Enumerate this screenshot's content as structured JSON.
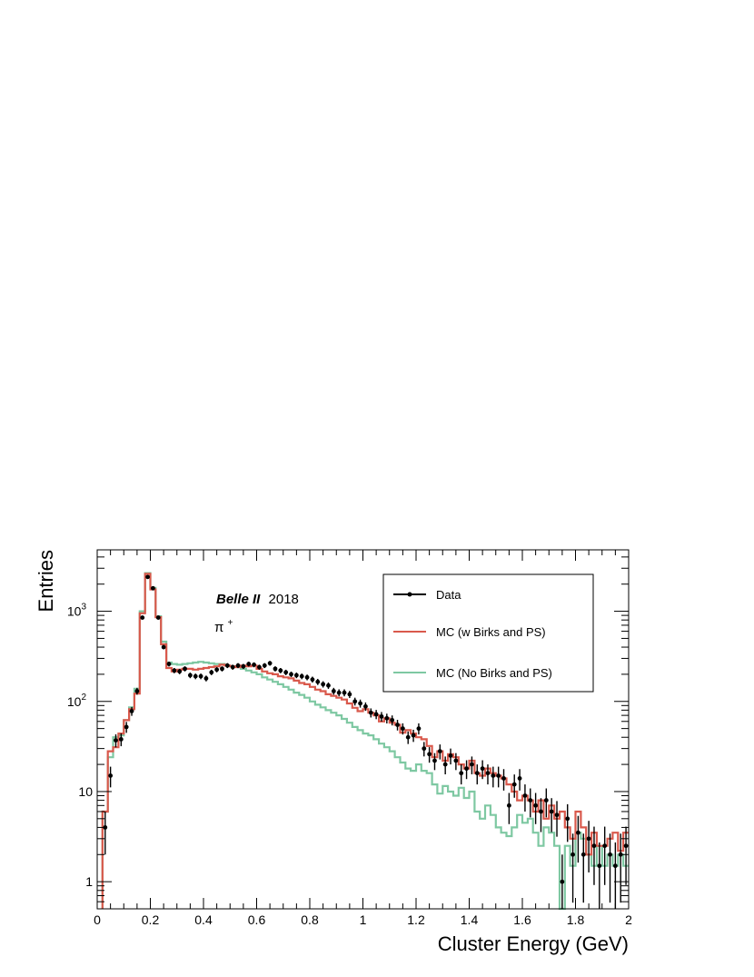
{
  "chart_data": {
    "type": "histogram",
    "title": "",
    "annotation": {
      "experiment": "Belle II",
      "year": "2018",
      "particle": "π",
      "charge": "+"
    },
    "xlabel": "Cluster Energy (GeV)",
    "ylabel": "Entries",
    "xlim": [
      0,
      2
    ],
    "ylim": [
      0.5,
      4800
    ],
    "y_scale": "log",
    "grid": false,
    "legend_position": "top-right",
    "x_ticks": [
      {
        "value": 0,
        "label": "0"
      },
      {
        "value": 0.2,
        "label": "0.2"
      },
      {
        "value": 0.4,
        "label": "0.4"
      },
      {
        "value": 0.6,
        "label": "0.6"
      },
      {
        "value": 0.8,
        "label": "0.8"
      },
      {
        "value": 1.0,
        "label": "1"
      },
      {
        "value": 1.2,
        "label": "1.2"
      },
      {
        "value": 1.4,
        "label": "1.4"
      },
      {
        "value": 1.6,
        "label": "1.6"
      },
      {
        "value": 1.8,
        "label": "1.8"
      },
      {
        "value": 2.0,
        "label": "2"
      }
    ],
    "y_ticks": [
      {
        "value": 1,
        "base": "1",
        "exp": ""
      },
      {
        "value": 10,
        "base": "10",
        "exp": ""
      },
      {
        "value": 100,
        "base": "10",
        "exp": "2"
      },
      {
        "value": 1000,
        "base": "10",
        "exp": "3"
      }
    ],
    "bin_edges": [
      0.02,
      2.0
    ],
    "bin_width": 0.02,
    "series": [
      {
        "name": "Data",
        "style": "points",
        "color": "#000000",
        "values": [
          4,
          15,
          37,
          38,
          52,
          78,
          130,
          850,
          2400,
          1800,
          850,
          400,
          260,
          220,
          215,
          230,
          195,
          190,
          190,
          180,
          210,
          225,
          230,
          250,
          240,
          250,
          245,
          260,
          255,
          240,
          250,
          265,
          230,
          220,
          210,
          200,
          195,
          190,
          185,
          175,
          165,
          155,
          150,
          130,
          125,
          125,
          120,
          100,
          95,
          88,
          75,
          72,
          68,
          65,
          62,
          55,
          50,
          40,
          42,
          50,
          30,
          26,
          22,
          28,
          20,
          25,
          22,
          16,
          18,
          20,
          16,
          18,
          16,
          15,
          15,
          14,
          7,
          12,
          14,
          9,
          8,
          7,
          6,
          8,
          6,
          5.5,
          1,
          5,
          2,
          3.5,
          2,
          3,
          2.5,
          1.5,
          2.5,
          2,
          1.5,
          2,
          2.5
        ]
      },
      {
        "name": "MC (w Birks and PS)",
        "style": "step",
        "color": "#d9594c",
        "values": [
          6,
          28,
          31,
          44,
          62,
          82,
          122,
          950,
          2600,
          1750,
          860,
          430,
          235,
          215,
          225,
          230,
          230,
          225,
          230,
          235,
          240,
          245,
          255,
          250,
          245,
          240,
          250,
          245,
          250,
          230,
          215,
          205,
          200,
          190,
          185,
          180,
          170,
          160,
          155,
          145,
          135,
          130,
          120,
          115,
          110,
          105,
          95,
          85,
          78,
          82,
          75,
          70,
          60,
          65,
          58,
          55,
          45,
          48,
          44,
          40,
          38,
          32,
          24,
          28,
          22,
          26,
          24,
          20,
          18,
          22,
          16,
          15,
          18,
          16,
          15,
          14,
          12,
          10,
          8,
          9,
          8,
          6,
          8,
          5,
          7,
          5,
          6,
          4,
          3,
          6,
          4,
          2,
          3.5,
          2.5,
          2.5,
          3,
          3.5,
          2.2,
          3.5
        ]
      },
      {
        "name": "MC (No Birks and PS)",
        "style": "step",
        "color": "#7ec8a2",
        "values": [
          6,
          24,
          40,
          42,
          62,
          86,
          138,
          1000,
          2650,
          1820,
          880,
          460,
          270,
          260,
          255,
          260,
          265,
          270,
          275,
          270,
          265,
          260,
          260,
          250,
          245,
          240,
          230,
          220,
          210,
          200,
          185,
          175,
          165,
          155,
          145,
          135,
          125,
          118,
          110,
          100,
          92,
          86,
          80,
          75,
          70,
          64,
          58,
          52,
          48,
          44,
          42,
          38,
          34,
          31,
          28,
          24,
          21,
          18,
          17,
          20,
          17,
          16,
          12,
          9.5,
          11.5,
          10,
          9,
          11,
          8.5,
          10,
          6,
          5,
          7,
          5.5,
          4,
          3.5,
          3.2,
          4,
          5.5,
          4.5,
          5,
          3.5,
          2.5,
          4,
          3.5,
          2.5,
          0.5,
          2.5,
          1.5,
          3.5,
          3,
          2,
          1.5,
          2.5,
          1.5,
          2,
          1.5,
          2,
          1.5
        ]
      }
    ]
  }
}
